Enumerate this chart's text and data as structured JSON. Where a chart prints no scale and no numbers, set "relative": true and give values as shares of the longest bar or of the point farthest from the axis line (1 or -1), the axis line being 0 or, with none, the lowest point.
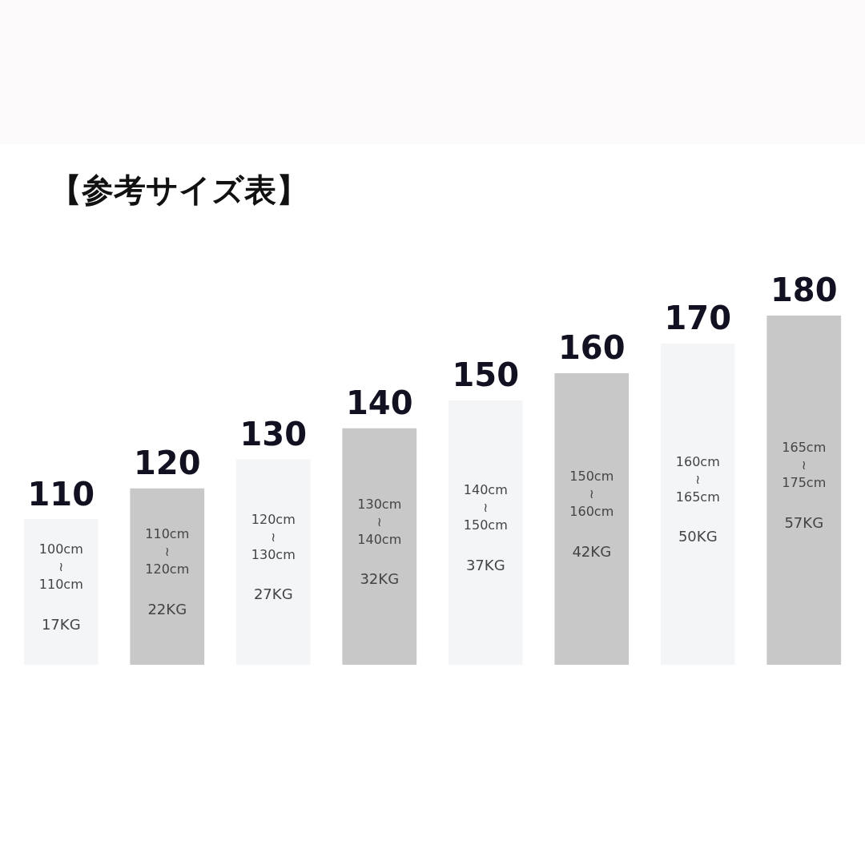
{
  "chart_data": {
    "type": "bar",
    "title": "【参考サイズ表】",
    "relative": true,
    "categories": [
      "110",
      "120",
      "130",
      "140",
      "150",
      "160",
      "170",
      "180"
    ],
    "values": [
      0.417,
      0.505,
      0.589,
      0.677,
      0.757,
      0.835,
      0.92,
      1
    ],
    "colors": [
      "#f4f5f7",
      "#c8c8c8",
      "#f4f5f7",
      "#c8c8c8",
      "#f4f5f7",
      "#c8c8c8",
      "#f4f5f7",
      "#c8c8c8"
    ],
    "annotations": [
      "100cm",
      "≀",
      "110cm",
      "17KG",
      "110cm",
      "≀",
      "120cm",
      "22KG",
      "120cm",
      "≀",
      "130cm",
      "27KG",
      "130cm",
      "≀",
      "140cm",
      "32KG",
      "140cm",
      "≀",
      "150cm",
      "37KG",
      "150cm",
      "≀",
      "160cm",
      "42KG",
      "160cm",
      "≀",
      "165cm",
      "50KG",
      "165cm",
      "≀",
      "175cm",
      "57KG"
    ]
  }
}
